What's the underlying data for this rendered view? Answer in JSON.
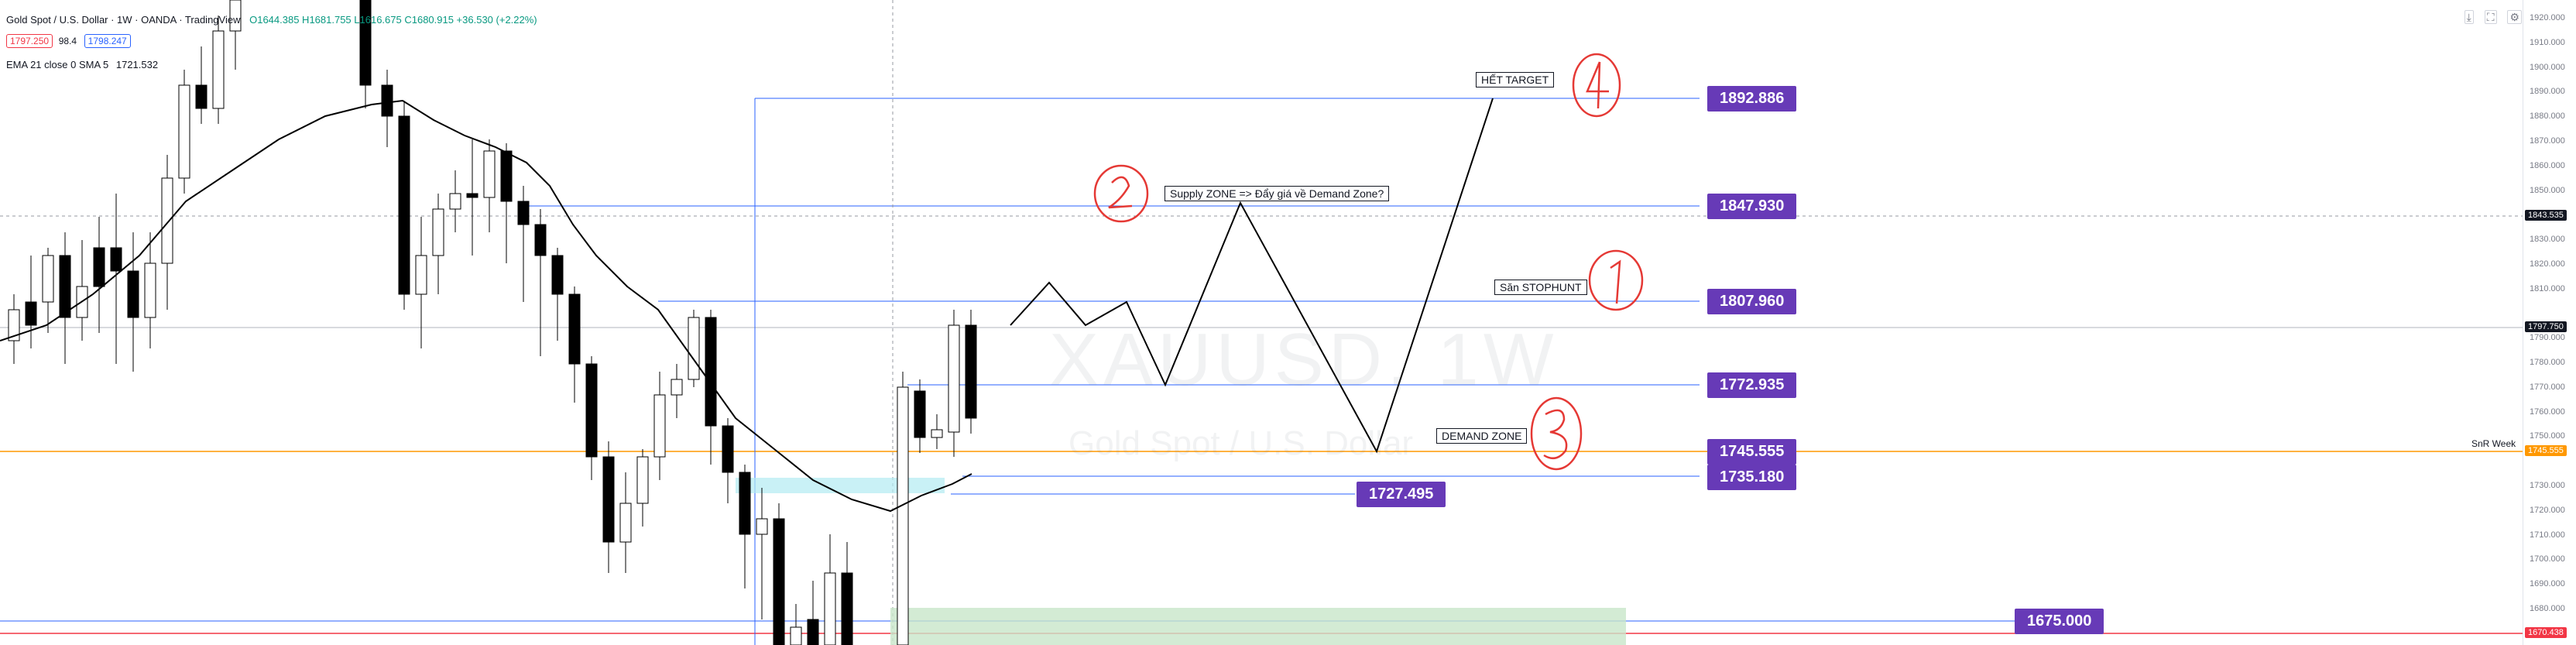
{
  "header": {
    "symbol_title": "Gold Spot / U.S. Dollar · 1W · OANDA · TradingView",
    "ohlc": "O1644.385 H1681.755 L1616.675 C1680.915 +36.530 (+2.22%)",
    "sell_price": "1797.250",
    "spread": "98.4",
    "buy_price": "1798.247",
    "ema_label": "EMA 21 close 0 SMA 5",
    "ema_value": "1721.532"
  },
  "watermark": {
    "symbol": "XAUUSD, 1W",
    "description": "Gold Spot / U.S. Dollar"
  },
  "top_right_icons": [
    "arrow-down-icon",
    "expand-icon",
    "settings-icon"
  ],
  "price_axis": {
    "ticks": [
      "1920.000",
      "1910.000",
      "1900.000",
      "1890.000",
      "1880.000",
      "1870.000",
      "1860.000",
      "1850.000",
      "1830.000",
      "1820.000",
      "1810.000",
      "1790.000",
      "1780.000",
      "1770.000",
      "1760.000",
      "1750.000",
      "1730.000",
      "1720.000",
      "1710.000",
      "1700.000",
      "1690.000",
      "1680.000"
    ],
    "crosshair_price": "1843.535",
    "last_price": "1797.750",
    "snr_price": "1745.555",
    "red_line_price": "1670.438"
  },
  "levels": [
    {
      "label": "1892.886"
    },
    {
      "label": "1847.930"
    },
    {
      "label": "1807.960"
    },
    {
      "label": "1772.935"
    },
    {
      "label": "1745.555"
    },
    {
      "label": "1735.180"
    },
    {
      "label": "1727.495"
    },
    {
      "label": "1675.000"
    }
  ],
  "annotations": {
    "target": "HẾT TARGET",
    "supply_zone": "Supply ZONE => Đẩy giá về Demand Zone?",
    "stophunt": "Săn STOPHUNT",
    "demand_zone": "DEMAND ZONE",
    "snr_week": "SnR Week"
  },
  "colors": {
    "candle": "#000000",
    "level_line": "#2962ff",
    "price_tag": "#673ab7",
    "orange_line": "#ff9800",
    "red_line": "#f23645",
    "demand_box": "#c8e6c9",
    "blue_box": "#b2ebf2",
    "step_marks": "#e53935"
  }
}
